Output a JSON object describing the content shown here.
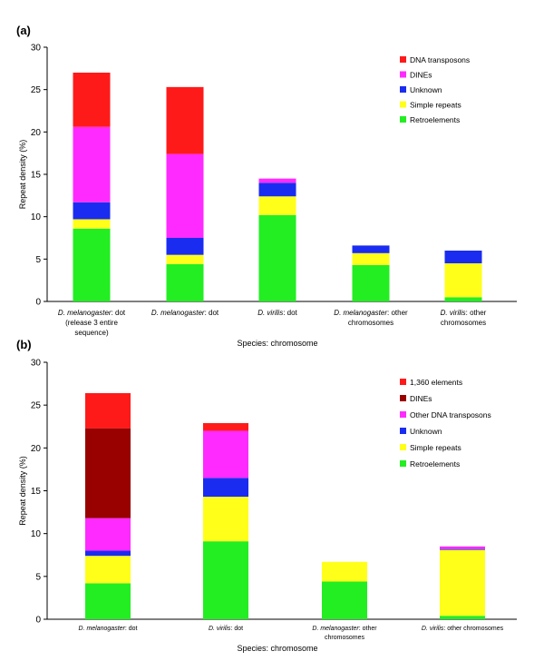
{
  "panels": {
    "a_label": "(a)",
    "b_label": "(b)"
  },
  "chart_data": [
    {
      "type": "bar",
      "stacked": true,
      "panel": "(a)",
      "xlabel": "Species: chromosome",
      "ylabel": "Repeat density (%)",
      "ylim": [
        0,
        30
      ],
      "yticks": [
        0,
        5,
        10,
        15,
        20,
        25,
        30
      ],
      "grid": false,
      "legend_position": "top-right",
      "categories": [
        {
          "prefix": "D. melanogaster",
          "lines": [
            ": dot",
            "(release 3 entire",
            "sequence)"
          ]
        },
        {
          "prefix": "D. melanogaster",
          "lines": [
            ": dot"
          ]
        },
        {
          "prefix": "D. virilis",
          "lines": [
            ": dot"
          ]
        },
        {
          "prefix": "D. melanogaster",
          "lines": [
            ": other",
            "chromosomes"
          ]
        },
        {
          "prefix": "D. virilis",
          "lines": [
            ": other",
            "chromosomes"
          ]
        }
      ],
      "series": [
        {
          "name": "Retroelements",
          "color": "#22ee22",
          "values": [
            8.6,
            4.4,
            10.2,
            4.3,
            0.5
          ]
        },
        {
          "name": "Simple repeats",
          "color": "#ffff1a",
          "values": [
            1.1,
            1.1,
            2.2,
            1.4,
            4.0
          ]
        },
        {
          "name": "Unknown",
          "color": "#1a2cf0",
          "values": [
            2.0,
            2.0,
            1.6,
            0.9,
            1.5
          ]
        },
        {
          "name": "DINEs",
          "color": "#ff2aff",
          "values": [
            8.9,
            9.9,
            0.5,
            0,
            0
          ]
        },
        {
          "name": "DNA transposons",
          "color": "#ff1a1a",
          "values": [
            6.4,
            7.9,
            0,
            0,
            0
          ]
        }
      ],
      "legend_order": [
        "DNA transposons",
        "DINEs",
        "Unknown",
        "Simple repeats",
        "Retroelements"
      ]
    },
    {
      "type": "bar",
      "stacked": true,
      "panel": "(b)",
      "xlabel": "Species: chromosome",
      "ylabel": "Repeat density (%)",
      "ylim": [
        0,
        30
      ],
      "yticks": [
        0,
        5,
        10,
        15,
        20,
        25,
        30
      ],
      "grid": false,
      "legend_position": "top-right",
      "categories": [
        {
          "prefix": "D. melanogaster",
          "lines": [
            ": dot"
          ]
        },
        {
          "prefix": "D. virilis",
          "lines": [
            ": dot"
          ]
        },
        {
          "prefix": "D. melanogaster",
          "lines": [
            ": other",
            "chromosomes"
          ]
        },
        {
          "prefix": "D. virilis",
          "lines": [
            ": other chromosomes"
          ]
        }
      ],
      "series": [
        {
          "name": "Retroelements",
          "color": "#22ee22",
          "values": [
            4.2,
            9.1,
            4.4,
            0.4
          ]
        },
        {
          "name": "Simple repeats",
          "color": "#ffff1a",
          "values": [
            3.2,
            5.2,
            2.3,
            7.7
          ]
        },
        {
          "name": "Unknown",
          "color": "#1a2cf0",
          "values": [
            0.6,
            2.2,
            0,
            0.1
          ]
        },
        {
          "name": "Other DNA transposons",
          "color": "#ff2aff",
          "values": [
            3.8,
            5.5,
            0,
            0.3
          ]
        },
        {
          "name": "DINEs",
          "color": "#990000",
          "values": [
            10.5,
            0,
            0,
            0
          ]
        },
        {
          "name": "1,360 elements",
          "color": "#ff1a1a",
          "values": [
            4.1,
            0.9,
            0,
            0
          ]
        }
      ],
      "legend_order": [
        "1,360 elements",
        "DINEs",
        "Other DNA transposons",
        "Unknown",
        "Simple repeats",
        "Retroelements"
      ]
    }
  ]
}
